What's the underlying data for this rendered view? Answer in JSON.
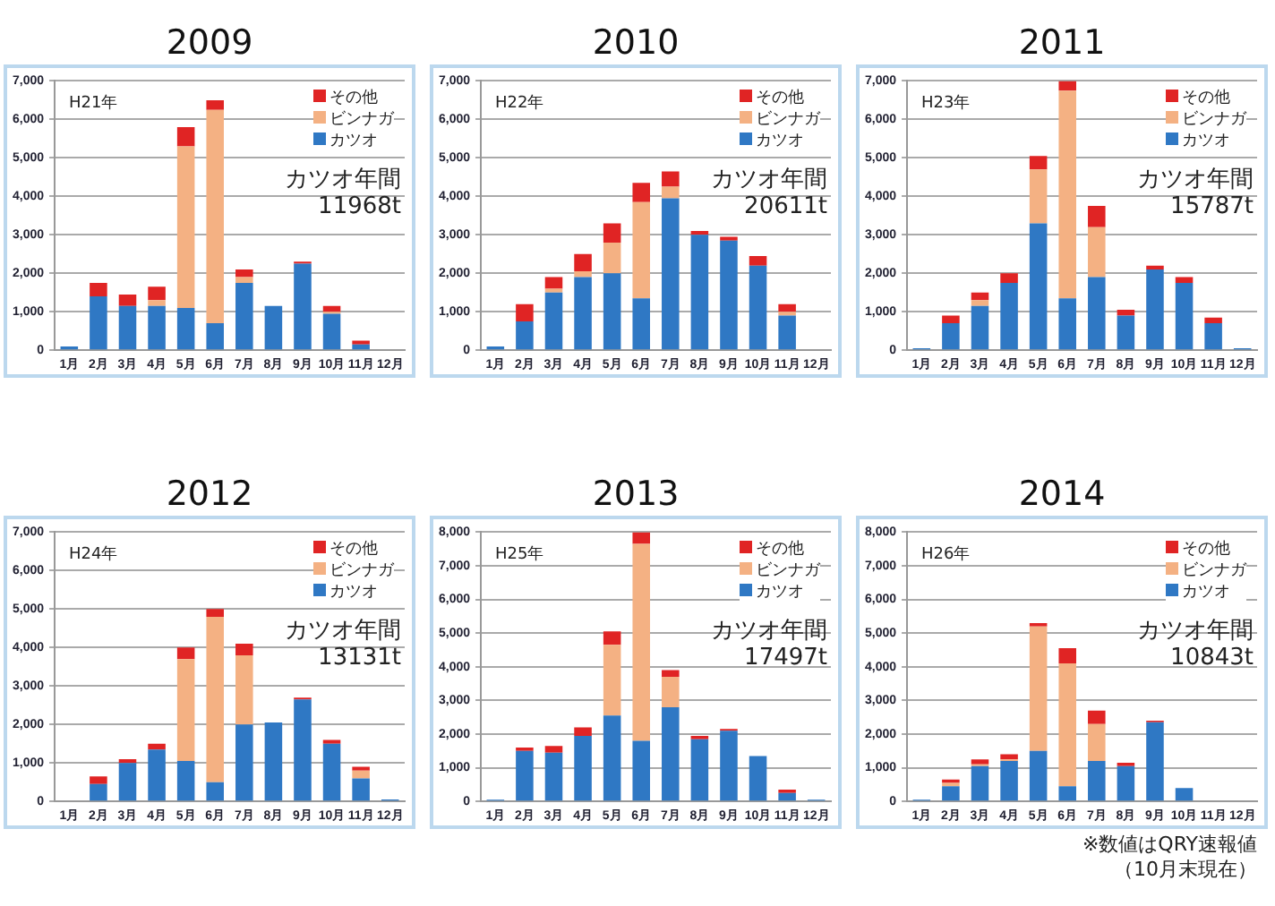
{
  "chart_data": [
    {
      "type": "bar",
      "title": "2009",
      "stacked": true,
      "grid": "y",
      "legend": "top right",
      "categories": [
        "1月",
        "2月",
        "3月",
        "4月",
        "5月",
        "6月",
        "7月",
        "8月",
        "9月",
        "10月",
        "11月",
        "12月"
      ],
      "ylim": [
        0,
        7000
      ],
      "yticks": [
        {
          "value": 0,
          "label": "0"
        },
        {
          "value": 1000,
          "label": "1,000"
        },
        {
          "value": 2000,
          "label": "2,000"
        },
        {
          "value": 3000,
          "label": "3,000"
        },
        {
          "value": 4000,
          "label": "4,000"
        },
        {
          "value": 5000,
          "label": "5,000"
        },
        {
          "value": 6000,
          "label": "6,000"
        },
        {
          "value": 7000,
          "label": "7,000"
        }
      ],
      "annotations": [
        "H21年",
        "カツオ年間\n11968t"
      ],
      "series": [
        {
          "name": "カツオ",
          "color": "#2f78c4",
          "values": [
            100,
            1400,
            1150,
            1150,
            1100,
            700,
            1750,
            1150,
            2250,
            950,
            150,
            0
          ]
        },
        {
          "name": "ビンナガ",
          "color": "#f4b183",
          "values": [
            0,
            0,
            0,
            150,
            4200,
            5550,
            150,
            0,
            0,
            50,
            0,
            0
          ]
        },
        {
          "name": "その他",
          "color": "#e02424",
          "values": [
            0,
            350,
            300,
            350,
            500,
            250,
            200,
            0,
            50,
            150,
            100,
            0
          ]
        }
      ]
    },
    {
      "type": "bar",
      "title": "2010",
      "stacked": true,
      "grid": "y",
      "legend": "top right",
      "categories": [
        "1月",
        "2月",
        "3月",
        "4月",
        "5月",
        "6月",
        "7月",
        "8月",
        "9月",
        "10月",
        "11月",
        "12月"
      ],
      "ylim": [
        0,
        7000
      ],
      "yticks": [
        {
          "value": 0,
          "label": "0"
        },
        {
          "value": 1000,
          "label": "1,000"
        },
        {
          "value": 2000,
          "label": "2,000"
        },
        {
          "value": 3000,
          "label": "3,000"
        },
        {
          "value": 4000,
          "label": "4,000"
        },
        {
          "value": 5000,
          "label": "5,000"
        },
        {
          "value": 6000,
          "label": "6,000"
        },
        {
          "value": 7000,
          "label": "7,000"
        }
      ],
      "annotations": [
        "H22年",
        "カツオ年間\n20611t"
      ],
      "series": [
        {
          "name": "カツオ",
          "color": "#2f78c4",
          "values": [
            100,
            750,
            1500,
            1900,
            2000,
            1350,
            3950,
            3000,
            2850,
            2200,
            900,
            20
          ]
        },
        {
          "name": "ビンナガ",
          "color": "#f4b183",
          "values": [
            0,
            0,
            100,
            150,
            800,
            2500,
            300,
            0,
            0,
            0,
            100,
            0
          ]
        },
        {
          "name": "その他",
          "color": "#e02424",
          "values": [
            0,
            450,
            300,
            450,
            500,
            500,
            400,
            100,
            100,
            250,
            200,
            0
          ]
        }
      ]
    },
    {
      "type": "bar",
      "title": "2011",
      "stacked": true,
      "grid": "y",
      "legend": "top right",
      "categories": [
        "1月",
        "2月",
        "3月",
        "4月",
        "5月",
        "6月",
        "7月",
        "8月",
        "9月",
        "10月",
        "11月",
        "12月"
      ],
      "ylim": [
        0,
        7000
      ],
      "yticks": [
        {
          "value": 0,
          "label": "0"
        },
        {
          "value": 1000,
          "label": "1,000"
        },
        {
          "value": 2000,
          "label": "2,000"
        },
        {
          "value": 3000,
          "label": "3,000"
        },
        {
          "value": 4000,
          "label": "4,000"
        },
        {
          "value": 5000,
          "label": "5,000"
        },
        {
          "value": 6000,
          "label": "6,000"
        },
        {
          "value": 7000,
          "label": "7,000"
        }
      ],
      "annotations": [
        "H23年",
        "カツオ年間\n15787t"
      ],
      "series": [
        {
          "name": "カツオ",
          "color": "#2f78c4",
          "values": [
            50,
            700,
            1150,
            1750,
            3300,
            1350,
            1900,
            900,
            2100,
            1750,
            700,
            50
          ]
        },
        {
          "name": "ビンナガ",
          "color": "#f4b183",
          "values": [
            0,
            0,
            150,
            0,
            1400,
            5400,
            1300,
            0,
            0,
            0,
            0,
            0
          ]
        },
        {
          "name": "その他",
          "color": "#e02424",
          "values": [
            0,
            200,
            200,
            250,
            350,
            250,
            550,
            150,
            100,
            150,
            150,
            0
          ]
        }
      ]
    },
    {
      "type": "bar",
      "title": "2012",
      "stacked": true,
      "grid": "y",
      "legend": "top right",
      "categories": [
        "1月",
        "2月",
        "3月",
        "4月",
        "5月",
        "6月",
        "7月",
        "8月",
        "9月",
        "10月",
        "11月",
        "12月"
      ],
      "ylim": [
        0,
        7000
      ],
      "yticks": [
        {
          "value": 0,
          "label": "0"
        },
        {
          "value": 1000,
          "label": "1,000"
        },
        {
          "value": 2000,
          "label": "2,000"
        },
        {
          "value": 3000,
          "label": "3,000"
        },
        {
          "value": 4000,
          "label": "4,000"
        },
        {
          "value": 5000,
          "label": "5,000"
        },
        {
          "value": 6000,
          "label": "6,000"
        },
        {
          "value": 7000,
          "label": "7,000"
        }
      ],
      "annotations": [
        "H24年",
        "カツオ年間\n13131t"
      ],
      "series": [
        {
          "name": "カツオ",
          "color": "#2f78c4",
          "values": [
            0,
            450,
            1000,
            1350,
            1050,
            500,
            2000,
            2050,
            2650,
            1500,
            600,
            50
          ]
        },
        {
          "name": "ビンナガ",
          "color": "#f4b183",
          "values": [
            0,
            0,
            0,
            0,
            2650,
            4300,
            1800,
            0,
            0,
            0,
            200,
            0
          ]
        },
        {
          "name": "その他",
          "color": "#e02424",
          "values": [
            0,
            200,
            100,
            150,
            300,
            200,
            300,
            0,
            50,
            100,
            100,
            0
          ]
        }
      ]
    },
    {
      "type": "bar",
      "title": "2013",
      "stacked": true,
      "grid": "y",
      "legend": "top right",
      "categories": [
        "1月",
        "2月",
        "3月",
        "4月",
        "5月",
        "6月",
        "7月",
        "8月",
        "9月",
        "10月",
        "11月",
        "12月"
      ],
      "ylim": [
        0,
        8000
      ],
      "yticks": [
        {
          "value": 0,
          "label": "0"
        },
        {
          "value": 1000,
          "label": "1,000"
        },
        {
          "value": 2000,
          "label": "2,000"
        },
        {
          "value": 3000,
          "label": "3,000"
        },
        {
          "value": 4000,
          "label": "4,000"
        },
        {
          "value": 5000,
          "label": "5,000"
        },
        {
          "value": 6000,
          "label": "6,000"
        },
        {
          "value": 7000,
          "label": "7,000"
        },
        {
          "value": 8000,
          "label": "8,000"
        }
      ],
      "annotations": [
        "H25年",
        "カツオ年間\n17497t"
      ],
      "series": [
        {
          "name": "カツオ",
          "color": "#2f78c4",
          "values": [
            50,
            1500,
            1450,
            1950,
            2550,
            1800,
            2800,
            1850,
            2100,
            1350,
            250,
            50
          ]
        },
        {
          "name": "ビンナガ",
          "color": "#f4b183",
          "values": [
            0,
            0,
            0,
            0,
            2100,
            5850,
            900,
            0,
            0,
            0,
            0,
            0
          ]
        },
        {
          "name": "その他",
          "color": "#e02424",
          "values": [
            0,
            100,
            200,
            250,
            400,
            350,
            200,
            100,
            50,
            0,
            100,
            0
          ]
        }
      ]
    },
    {
      "type": "bar",
      "title": "2014",
      "stacked": true,
      "grid": "y",
      "legend": "top right",
      "categories": [
        "1月",
        "2月",
        "3月",
        "4月",
        "5月",
        "6月",
        "7月",
        "8月",
        "9月",
        "10月",
        "11月",
        "12月"
      ],
      "ylim": [
        0,
        8000
      ],
      "yticks": [
        {
          "value": 0,
          "label": "0"
        },
        {
          "value": 1000,
          "label": "1,000"
        },
        {
          "value": 2000,
          "label": "2,000"
        },
        {
          "value": 3000,
          "label": "3,000"
        },
        {
          "value": 4000,
          "label": "4,000"
        },
        {
          "value": 5000,
          "label": "5,000"
        },
        {
          "value": 6000,
          "label": "6,000"
        },
        {
          "value": 7000,
          "label": "7,000"
        },
        {
          "value": 8000,
          "label": "8,000"
        }
      ],
      "annotations": [
        "H26年",
        "カツオ年間\n10843t",
        "※数値はQRY速報値",
        "（10月末現在）"
      ],
      "series": [
        {
          "name": "カツオ",
          "color": "#2f78c4",
          "values": [
            50,
            450,
            1050,
            1200,
            1500,
            450,
            1200,
            1050,
            2350,
            400,
            0,
            0
          ]
        },
        {
          "name": "ビンナガ",
          "color": "#f4b183",
          "values": [
            0,
            100,
            50,
            50,
            3700,
            3650,
            1100,
            0,
            0,
            0,
            0,
            0
          ]
        },
        {
          "name": "その他",
          "color": "#e02424",
          "values": [
            0,
            100,
            150,
            150,
            100,
            450,
            400,
            100,
            50,
            0,
            0,
            0
          ]
        }
      ]
    }
  ]
}
